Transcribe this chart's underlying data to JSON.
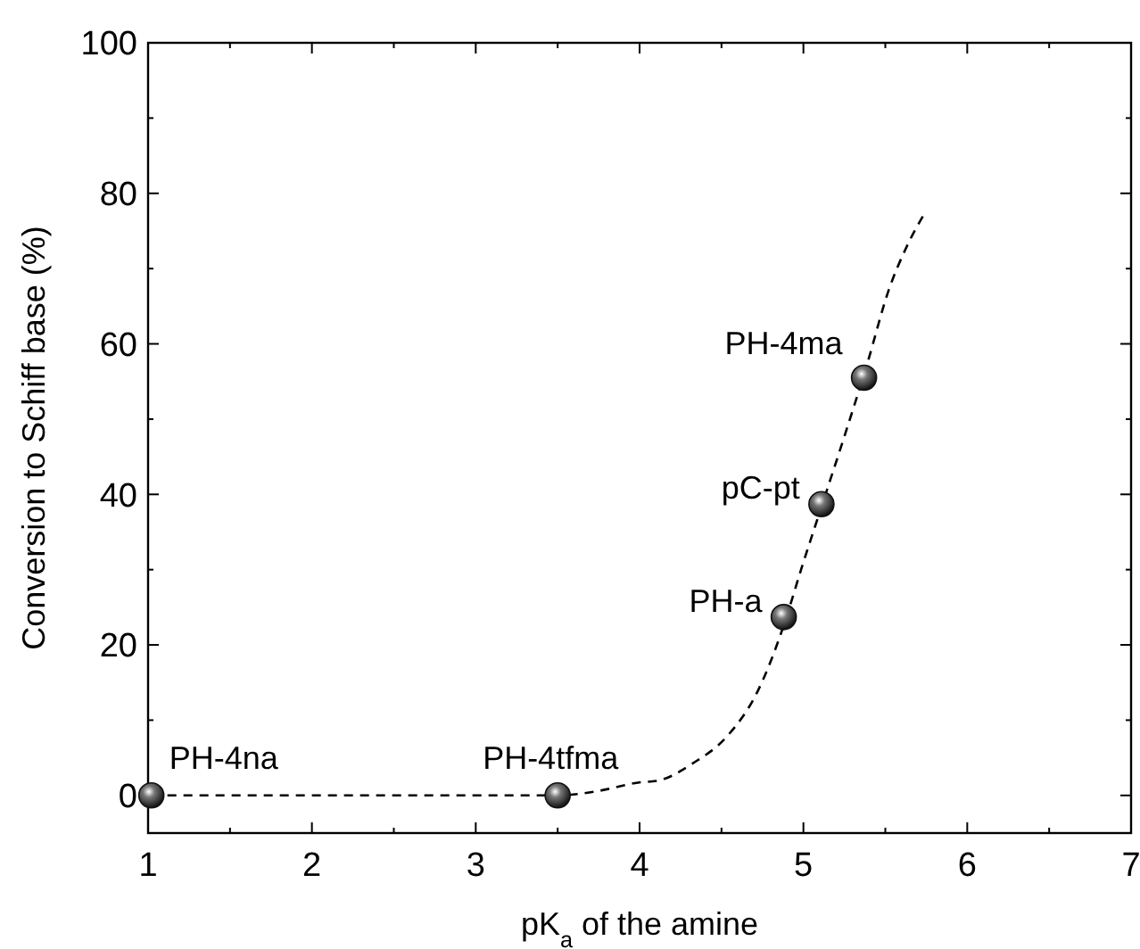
{
  "chart_data": {
    "type": "scatter",
    "xlabel": "pK$_{a}$ of the amine",
    "ylabel": "Conversion to Schiff base (%)",
    "xlim": [
      1,
      7
    ],
    "xticks": [
      1,
      2,
      3,
      4,
      5,
      6,
      7
    ],
    "ylim": [
      -5,
      100
    ],
    "yticks": [
      0,
      20,
      40,
      60,
      80,
      100
    ],
    "series": [
      {
        "type": "line",
        "color": "#000000",
        "line_style": "dashed",
        "x": [
          1.02,
          2.0,
          3.0,
          3.5,
          3.75,
          3.99,
          4.12,
          4.32,
          4.54,
          4.72,
          4.88,
          4.99,
          5.12,
          5.25,
          5.39,
          5.52,
          5.63,
          5.75
        ],
        "values": [
          0,
          0,
          0,
          0,
          0.6,
          1.7,
          2.0,
          4.2,
          8.0,
          13.8,
          22.6,
          30.3,
          39,
          47.7,
          57.4,
          67.1,
          72.9,
          77.7
        ]
      },
      {
        "type": "scatter",
        "color": "#111111",
        "marker": "circle",
        "x": [
          1.02,
          3.5,
          4.88,
          5.11,
          5.37
        ],
        "values": [
          0,
          0,
          23.7,
          38.7,
          55.5
        ]
      }
    ],
    "annotations": [
      {
        "text": "PH-4na",
        "x": 1.02,
        "y": 0
      },
      {
        "text": "PH-4tfma",
        "x": 3.5,
        "y": 0
      },
      {
        "text": "PH-a",
        "x": 4.88,
        "y": 23.7
      },
      {
        "text": "pC-pt",
        "x": 5.11,
        "y": 38.7
      },
      {
        "text": "PH-4ma",
        "x": 5.37,
        "y": 55.5
      }
    ]
  }
}
